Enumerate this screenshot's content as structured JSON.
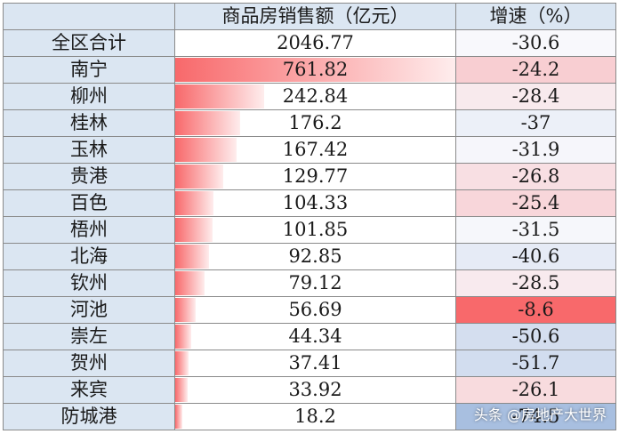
{
  "header": {
    "sales": "商品房销售额（亿元）",
    "growth": "增速（%）"
  },
  "rows": [
    {
      "city": "全区合计",
      "sales": "2046.77",
      "growth": "-30.6"
    },
    {
      "city": "南宁",
      "sales": "761.82",
      "growth": "-24.2"
    },
    {
      "city": "柳州",
      "sales": "242.84",
      "growth": "-28.4"
    },
    {
      "city": "桂林",
      "sales": "176.2",
      "growth": "-37"
    },
    {
      "city": "玉林",
      "sales": "167.42",
      "growth": "-31.9"
    },
    {
      "city": "贵港",
      "sales": "129.77",
      "growth": "-26.8"
    },
    {
      "city": "百色",
      "sales": "104.33",
      "growth": "-25.4"
    },
    {
      "city": "梧州",
      "sales": "101.85",
      "growth": "-31.5"
    },
    {
      "city": "北海",
      "sales": "92.85",
      "growth": "-40.6"
    },
    {
      "city": "钦州",
      "sales": "79.12",
      "growth": "-28.5"
    },
    {
      "city": "河池",
      "sales": "56.69",
      "growth": "-8.6"
    },
    {
      "city": "崇左",
      "sales": "44.34",
      "growth": "-50.6"
    },
    {
      "city": "贺州",
      "sales": "37.41",
      "growth": "-51.7"
    },
    {
      "city": "来宾",
      "sales": "33.92",
      "growth": "-26.1"
    },
    {
      "city": "防城港",
      "sales": "18.2",
      "growth": "-74.5"
    }
  ],
  "colors": {
    "bar": "#f8696b",
    "growth_low": "#a8bfe0",
    "growth_mid": "#f8f8fc",
    "growth_high": "#f8696b",
    "label_fill": "#dbe6f2"
  },
  "watermark": "头条 @房地产大世界"
}
